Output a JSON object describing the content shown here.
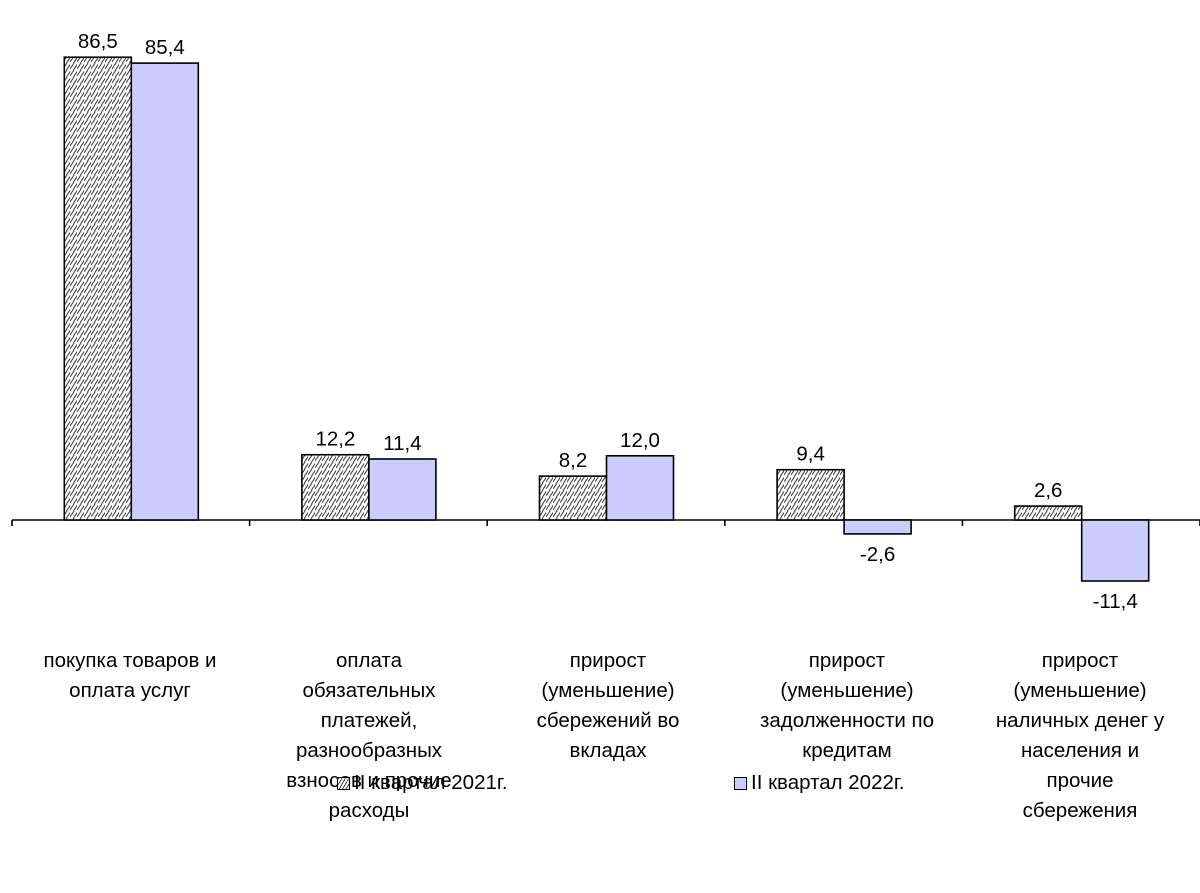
{
  "chart_data": {
    "type": "bar",
    "categories": [
      "покупка товаров и\nоплата услуг",
      "оплата\nобязательных\nплатежей,\nразнообразных\nвзносов и прочие\nрасходы",
      "прирост\n(уменьшение)\nсбережений во\nвкладах",
      "прирост\n(уменьшение)\nзадолженности по\nкредитам",
      "прирост\n(уменьшение)\nналичных денег у\nнаселения и\nпрочие\nсбережения"
    ],
    "series": [
      {
        "name": "II квартал 2021г.",
        "values": [
          86.5,
          12.2,
          8.2,
          9.4,
          2.6
        ],
        "value_labels": [
          "86,5",
          "12,2",
          "8,2",
          "9,4",
          "2,6"
        ],
        "color": "#ffffff",
        "pattern": "diagonal-hatch"
      },
      {
        "name": "II квартал 2022г.",
        "values": [
          85.4,
          11.4,
          12.0,
          -2.6,
          -11.4
        ],
        "value_labels": [
          "85,4",
          "11,4",
          "12,0",
          "-2,6",
          "-11,4"
        ],
        "color": "#ccccff"
      }
    ],
    "ylim": [
      -11.4,
      86.5
    ],
    "grid": false,
    "legend_position": "bottom"
  }
}
